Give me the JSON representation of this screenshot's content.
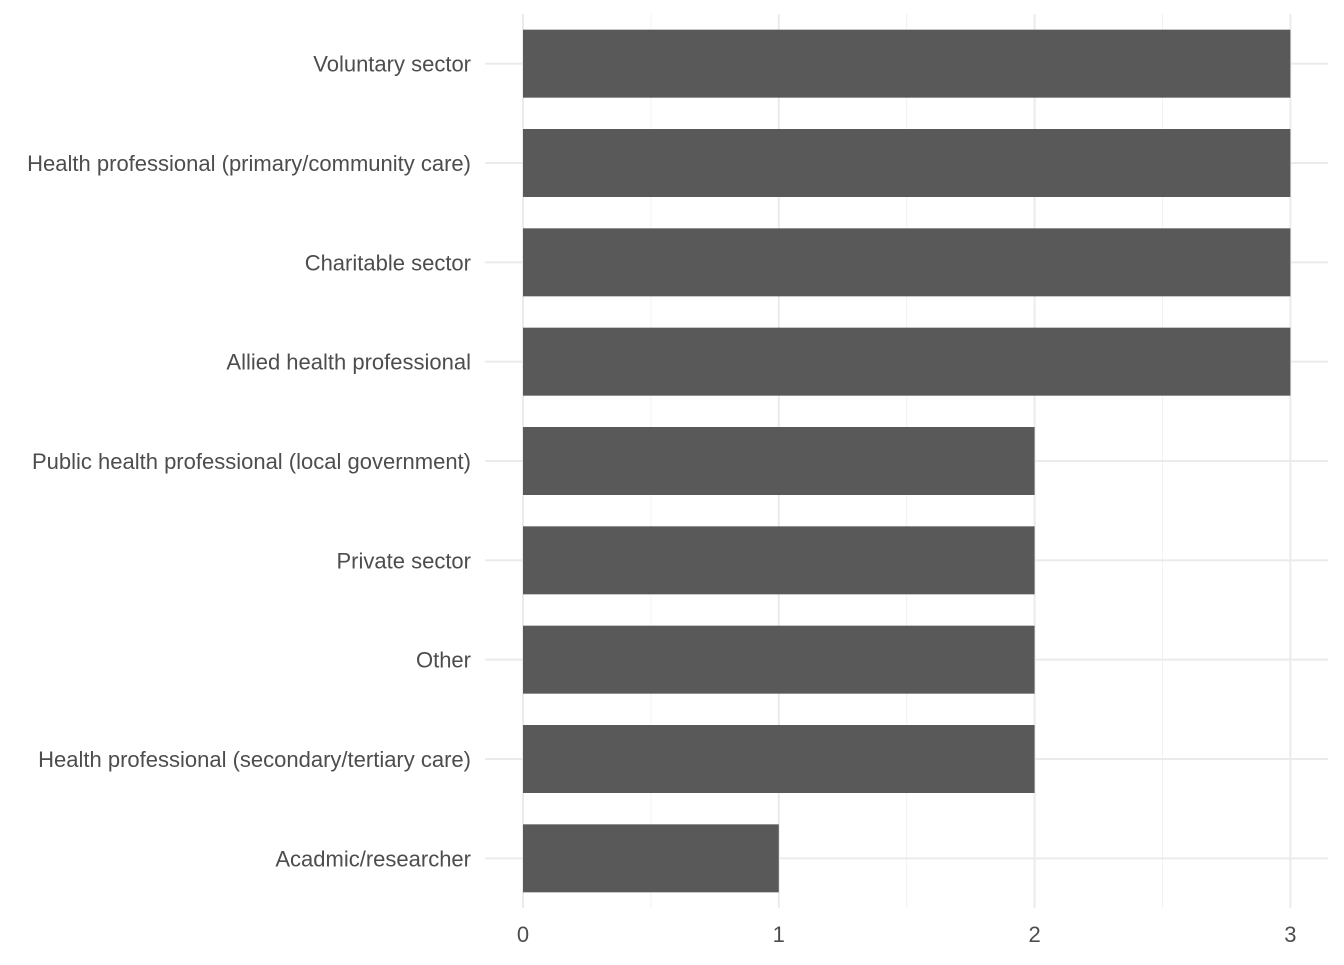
{
  "chart_data": {
    "type": "bar",
    "orientation": "horizontal",
    "title": "",
    "xlabel": "",
    "ylabel": "",
    "categories": [
      "Voluntary sector",
      "Health professional (primary/community care)",
      "Charitable sector",
      "Allied health professional",
      "Public health professional (local government)",
      "Private sector",
      "Other",
      "Health professional (secondary/tertiary care)",
      "Acadmic/researcher"
    ],
    "values": [
      3,
      3,
      3,
      3,
      2,
      2,
      2,
      2,
      1
    ],
    "xlim": [
      0,
      3.15
    ],
    "x_ticks": [
      0,
      1,
      2,
      3
    ],
    "x_tick_labels": [
      "0",
      "1",
      "2",
      "3"
    ],
    "grid": true,
    "bar_color": "#595959",
    "grid_major_color": "#ebebeb",
    "grid_minor_color": "#f2f2f2",
    "text_color": "#4d4d4d",
    "background_color": "#ffffff"
  }
}
